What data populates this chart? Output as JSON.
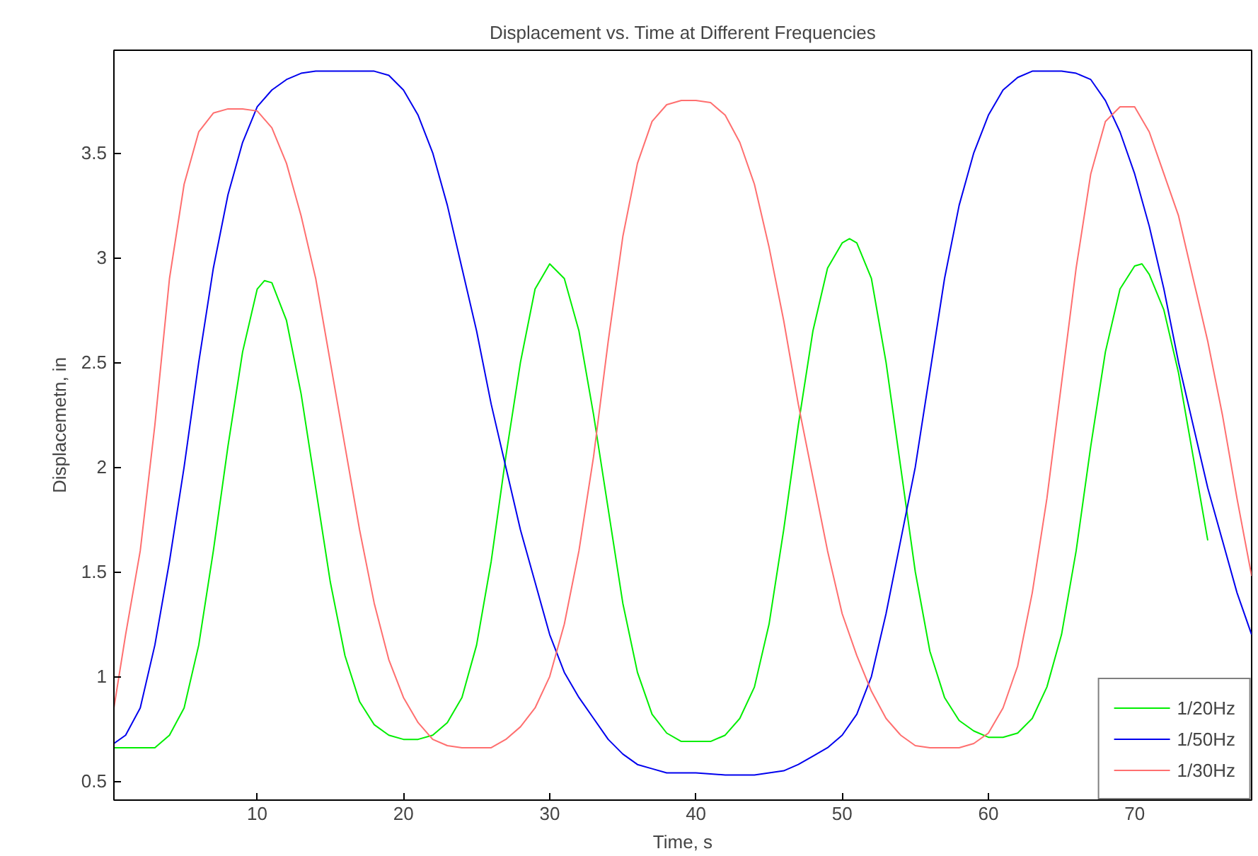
{
  "chart_data": {
    "type": "line",
    "title": "Displacement vs. Time at Different Frequencies",
    "xlabel": "Time, s",
    "ylabel": "Displacemetn, in",
    "xlim": [
      0.2,
      78
    ],
    "ylim": [
      0.41,
      3.99
    ],
    "xticks": [
      10,
      20,
      30,
      40,
      50,
      60,
      70
    ],
    "yticks": [
      0.5,
      1,
      1.5,
      2,
      2.5,
      3,
      3.5
    ],
    "grid": false,
    "legend": "bottom right",
    "series": [
      {
        "name": "1/20Hz",
        "color": "#00ee00",
        "x": [
          0.2,
          3,
          4,
          5,
          6,
          7,
          8,
          9,
          10,
          10.5,
          11,
          12,
          13,
          14,
          15,
          16,
          17,
          18,
          19,
          20,
          21,
          22,
          23,
          24,
          25,
          26,
          27,
          28,
          29,
          30,
          31,
          32,
          33,
          34,
          35,
          36,
          37,
          38,
          39,
          40,
          41,
          42,
          43,
          44,
          45,
          46,
          47,
          48,
          49,
          50,
          50.5,
          51,
          52,
          53,
          54,
          55,
          56,
          57,
          58,
          59,
          60,
          61,
          62,
          63,
          64,
          65,
          66,
          67,
          68,
          69,
          70,
          70.5,
          71,
          72,
          73,
          74,
          75
        ],
        "values": [
          0.66,
          0.66,
          0.72,
          0.85,
          1.15,
          1.6,
          2.1,
          2.55,
          2.85,
          2.89,
          2.88,
          2.7,
          2.35,
          1.9,
          1.45,
          1.1,
          0.88,
          0.77,
          0.72,
          0.7,
          0.7,
          0.72,
          0.78,
          0.9,
          1.15,
          1.55,
          2.05,
          2.5,
          2.85,
          2.97,
          2.9,
          2.65,
          2.25,
          1.8,
          1.35,
          1.02,
          0.82,
          0.73,
          0.69,
          0.69,
          0.69,
          0.72,
          0.8,
          0.95,
          1.25,
          1.7,
          2.2,
          2.65,
          2.95,
          3.07,
          3.09,
          3.07,
          2.9,
          2.5,
          2.0,
          1.5,
          1.12,
          0.9,
          0.79,
          0.74,
          0.71,
          0.71,
          0.73,
          0.8,
          0.95,
          1.2,
          1.6,
          2.1,
          2.55,
          2.85,
          2.96,
          2.97,
          2.92,
          2.75,
          2.45,
          2.05,
          1.65
        ]
      },
      {
        "name": "1/50Hz",
        "color": "#0000ee",
        "x": [
          0.2,
          1,
          2,
          3,
          4,
          5,
          6,
          7,
          8,
          9,
          10,
          11,
          12,
          13,
          14,
          16,
          18,
          19,
          20,
          21,
          22,
          23,
          24,
          25,
          26,
          27,
          28,
          29,
          30,
          31,
          32,
          33,
          34,
          35,
          36,
          37,
          38,
          40,
          42,
          44,
          46,
          47,
          48,
          49,
          50,
          51,
          52,
          53,
          54,
          55,
          56,
          57,
          58,
          59,
          60,
          61,
          62,
          63,
          65,
          66,
          67,
          68,
          69,
          70,
          71,
          72,
          73,
          74,
          75,
          76,
          77,
          78
        ],
        "values": [
          0.68,
          0.72,
          0.85,
          1.15,
          1.55,
          2.0,
          2.5,
          2.95,
          3.3,
          3.55,
          3.72,
          3.8,
          3.85,
          3.88,
          3.89,
          3.89,
          3.89,
          3.87,
          3.8,
          3.68,
          3.5,
          3.25,
          2.95,
          2.65,
          2.3,
          2.0,
          1.7,
          1.45,
          1.2,
          1.02,
          0.9,
          0.8,
          0.7,
          0.63,
          0.58,
          0.56,
          0.54,
          0.54,
          0.53,
          0.53,
          0.55,
          0.58,
          0.62,
          0.66,
          0.72,
          0.82,
          1.0,
          1.3,
          1.65,
          2.0,
          2.45,
          2.9,
          3.25,
          3.5,
          3.68,
          3.8,
          3.86,
          3.89,
          3.89,
          3.88,
          3.85,
          3.75,
          3.6,
          3.4,
          3.15,
          2.85,
          2.5,
          2.2,
          1.9,
          1.65,
          1.4,
          1.2
        ]
      },
      {
        "name": "1/30Hz",
        "color": "#ff6f6f",
        "x": [
          0.2,
          1,
          2,
          3,
          4,
          5,
          6,
          7,
          8,
          9,
          10,
          11,
          12,
          13,
          14,
          15,
          16,
          17,
          18,
          19,
          20,
          21,
          22,
          23,
          24,
          25,
          26,
          27,
          28,
          29,
          30,
          31,
          32,
          33,
          34,
          35,
          36,
          37,
          38,
          39,
          40,
          41,
          42,
          43,
          44,
          45,
          46,
          47,
          48,
          49,
          50,
          51,
          52,
          53,
          54,
          55,
          56,
          57,
          58,
          59,
          60,
          61,
          62,
          63,
          64,
          65,
          66,
          67,
          68,
          69,
          70,
          71,
          72,
          73,
          74,
          75,
          76,
          77,
          78
        ],
        "values": [
          0.85,
          1.2,
          1.6,
          2.2,
          2.9,
          3.35,
          3.6,
          3.69,
          3.71,
          3.71,
          3.7,
          3.62,
          3.45,
          3.2,
          2.9,
          2.5,
          2.1,
          1.7,
          1.35,
          1.08,
          0.9,
          0.78,
          0.7,
          0.67,
          0.66,
          0.66,
          0.66,
          0.7,
          0.76,
          0.85,
          1.0,
          1.25,
          1.6,
          2.05,
          2.6,
          3.1,
          3.45,
          3.65,
          3.73,
          3.75,
          3.75,
          3.74,
          3.68,
          3.55,
          3.35,
          3.05,
          2.7,
          2.3,
          1.95,
          1.6,
          1.3,
          1.1,
          0.93,
          0.8,
          0.72,
          0.67,
          0.66,
          0.66,
          0.66,
          0.68,
          0.73,
          0.85,
          1.05,
          1.4,
          1.85,
          2.4,
          2.95,
          3.4,
          3.65,
          3.72,
          3.72,
          3.6,
          3.4,
          3.2,
          2.9,
          2.6,
          2.25,
          1.85,
          1.48
        ]
      }
    ]
  }
}
